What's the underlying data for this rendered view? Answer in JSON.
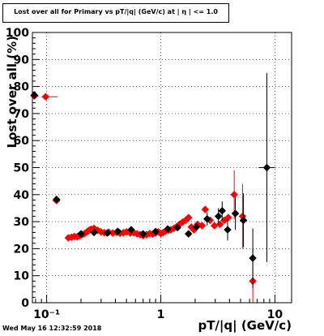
{
  "title": "Lost over all for Primary vs pT/|q| (GeV/c) at | η | <= 1.0",
  "timestamp": "Wed May 16 12:32:59 2018",
  "colors": {
    "series_red": "#ff0000",
    "series_black": "#000000",
    "grid": "#000000",
    "frame": "#000000"
  },
  "chart_data": {
    "type": "scatter",
    "title": "Lost over all for Primary vs pT/|q| (GeV/c) at | η | <= 1.0",
    "xlabel": "pT/|q| (GeV/c)",
    "ylabel": "Lost over all (%)",
    "xscale": "log",
    "xlim": [
      0.075,
      14
    ],
    "ylim": [
      0,
      100
    ],
    "grid": true,
    "x_tick_labels": [
      "10⁻¹",
      "1",
      "10"
    ],
    "y_tick_labels": [
      "0",
      "10",
      "20",
      "30",
      "40",
      "50",
      "60",
      "70",
      "80",
      "90",
      "100"
    ],
    "series": [
      {
        "color": "red",
        "marker": "diamond",
        "points": [
          {
            "x": 0.078,
            "y": 76.5,
            "xerr": [
              0.072,
              0.085
            ],
            "yerr": 0.5
          },
          {
            "x": 0.098,
            "y": 76.2,
            "xerr": [
              0.09,
              0.125
            ],
            "yerr": 0.5
          },
          {
            "x": 0.122,
            "y": 37.8,
            "xerr": [
              0.112,
              0.13
            ],
            "yerr": 1.0
          },
          {
            "x": 0.155,
            "y": 24.0
          },
          {
            "x": 0.165,
            "y": 24.2
          },
          {
            "x": 0.175,
            "y": 24.5
          },
          {
            "x": 0.185,
            "y": 24.4
          },
          {
            "x": 0.195,
            "y": 24.8
          },
          {
            "x": 0.205,
            "y": 25.2
          },
          {
            "x": 0.215,
            "y": 25.6
          },
          {
            "x": 0.225,
            "y": 26.2
          },
          {
            "x": 0.235,
            "y": 26.8
          },
          {
            "x": 0.245,
            "y": 27.2
          },
          {
            "x": 0.26,
            "y": 27.5
          },
          {
            "x": 0.28,
            "y": 26.8
          },
          {
            "x": 0.3,
            "y": 26.2
          },
          {
            "x": 0.32,
            "y": 25.9
          },
          {
            "x": 0.35,
            "y": 26.1
          },
          {
            "x": 0.38,
            "y": 25.8
          },
          {
            "x": 0.41,
            "y": 26.0
          },
          {
            "x": 0.44,
            "y": 25.7
          },
          {
            "x": 0.47,
            "y": 25.9
          },
          {
            "x": 0.5,
            "y": 26.2
          },
          {
            "x": 0.54,
            "y": 25.8
          },
          {
            "x": 0.58,
            "y": 25.9
          },
          {
            "x": 0.62,
            "y": 25.5
          },
          {
            "x": 0.66,
            "y": 25.2
          },
          {
            "x": 0.7,
            "y": 24.8
          },
          {
            "x": 0.75,
            "y": 25.2
          },
          {
            "x": 0.8,
            "y": 25.6
          },
          {
            "x": 0.85,
            "y": 25.4
          },
          {
            "x": 0.9,
            "y": 25.8
          },
          {
            "x": 0.95,
            "y": 26.2
          },
          {
            "x": 1.0,
            "y": 25.6
          },
          {
            "x": 1.05,
            "y": 26.0
          },
          {
            "x": 1.1,
            "y": 26.5
          },
          {
            "x": 1.16,
            "y": 26.8
          },
          {
            "x": 1.22,
            "y": 27.0
          },
          {
            "x": 1.3,
            "y": 27.5
          },
          {
            "x": 1.38,
            "y": 28.2
          },
          {
            "x": 1.46,
            "y": 29.0
          },
          {
            "x": 1.55,
            "y": 29.8
          },
          {
            "x": 1.65,
            "y": 30.5
          },
          {
            "x": 1.75,
            "y": 31.5
          },
          {
            "x": 1.85,
            "y": 28.0
          },
          {
            "x": 1.95,
            "y": 27.0
          },
          {
            "x": 2.1,
            "y": 29.0
          },
          {
            "x": 2.3,
            "y": 28.5
          },
          {
            "x": 2.45,
            "y": 34.5
          },
          {
            "x": 2.7,
            "y": 30.5
          },
          {
            "x": 2.95,
            "y": 28.5
          },
          {
            "x": 3.3,
            "y": 29.0
          },
          {
            "x": 3.6,
            "y": 30.5
          },
          {
            "x": 3.9,
            "y": 31.5
          },
          {
            "x": 4.4,
            "y": 40.0,
            "yerr": 9.0
          },
          {
            "x": 5.2,
            "y": 32.0,
            "yerr": 12.0
          },
          {
            "x": 6.4,
            "y": 8.0,
            "yerr": 12.0
          }
        ]
      },
      {
        "color": "black",
        "marker": "diamond",
        "points": [
          {
            "x": 0.078,
            "y": 76.8
          },
          {
            "x": 0.122,
            "y": 38.2
          },
          {
            "x": 0.2,
            "y": 25.5
          },
          {
            "x": 0.26,
            "y": 26.0
          },
          {
            "x": 0.34,
            "y": 25.8
          },
          {
            "x": 0.42,
            "y": 26.4
          },
          {
            "x": 0.55,
            "y": 27.0
          },
          {
            "x": 0.7,
            "y": 25.5
          },
          {
            "x": 0.9,
            "y": 26.3
          },
          {
            "x": 1.15,
            "y": 27.3
          },
          {
            "x": 1.4,
            "y": 27.8
          },
          {
            "x": 1.75,
            "y": 25.5
          },
          {
            "x": 2.05,
            "y": 28.0
          },
          {
            "x": 2.55,
            "y": 31.0,
            "yerr": 2.5
          },
          {
            "x": 3.2,
            "y": 32.0,
            "yerr": 3.0
          },
          {
            "x": 3.45,
            "y": 34.0,
            "yerr": 3.5
          },
          {
            "x": 3.85,
            "y": 27.0,
            "yerr": 4.0
          },
          {
            "x": 4.5,
            "y": 33.0,
            "yerr": 6.0
          },
          {
            "x": 5.3,
            "y": 30.5,
            "yerr": 10.0
          },
          {
            "x": 6.4,
            "y": 16.5,
            "yerr": 11.0
          },
          {
            "x": 8.5,
            "y": 50.0,
            "xerr": [
              7.2,
              10.0
            ],
            "yerr": 35.0
          }
        ]
      }
    ]
  }
}
